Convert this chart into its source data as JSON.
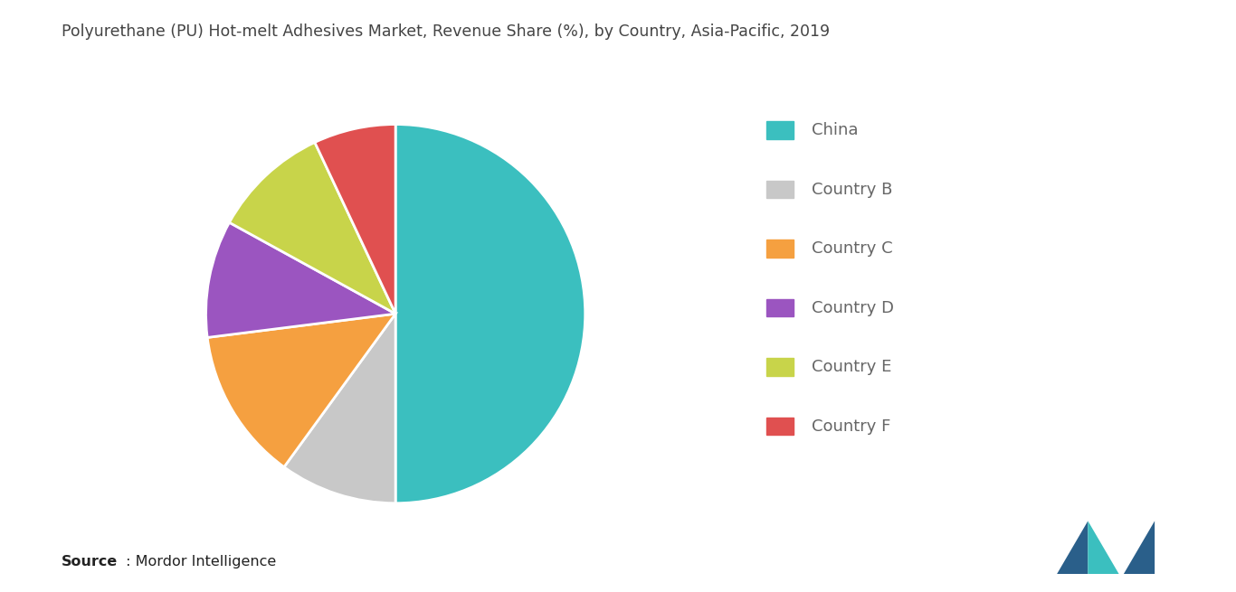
{
  "title": "Polyurethane (PU) Hot-melt Adhesives Market, Revenue Share (%), by Country, Asia-Pacific, 2019",
  "labels": [
    "China",
    "Country B",
    "Country C",
    "Country D",
    "Country E",
    "Country F"
  ],
  "values": [
    50,
    10,
    13,
    10,
    10,
    7
  ],
  "colors": [
    "#3bbfbf",
    "#c8c8c8",
    "#f5a040",
    "#9b55c0",
    "#c8d44a",
    "#e05050"
  ],
  "legend_labels": [
    "China",
    "Country B",
    "Country C",
    "Country D",
    "Country E",
    "Country F"
  ],
  "source_bold": "Source",
  "source_rest": " : Mordor Intelligence",
  "background_color": "#ffffff",
  "title_fontsize": 12.5,
  "legend_fontsize": 13,
  "source_fontsize": 11.5,
  "pie_startangle": 90,
  "wedge_linewidth": 2.0,
  "wedge_edgecolor": "#ffffff"
}
